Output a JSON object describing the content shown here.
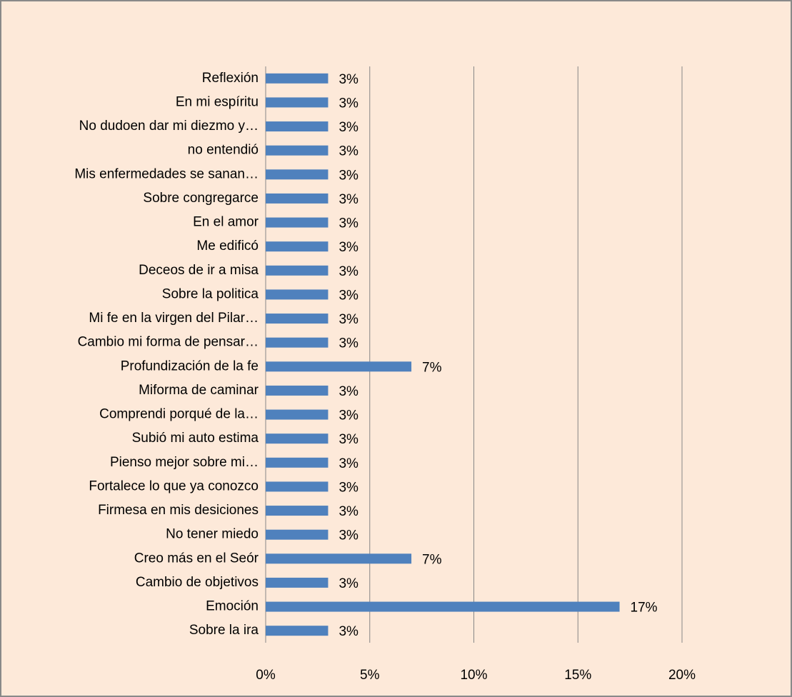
{
  "chart_data": {
    "type": "barh",
    "categories": [
      "Reflexión",
      "En mi espíritu",
      "No dudoen dar mi diezmo y…",
      "no entendió",
      "Mis enfermedades se sanan…",
      "Sobre congregarce",
      "En el amor",
      "Me edificó",
      "Deceos  de ir a misa",
      "Sobre la politica",
      "Mi fe en la virgen del Pilar…",
      "Cambio mi forma de pensar…",
      "Profundización de la fe",
      "Miforma de caminar",
      "Comprendi porqué de la…",
      "Subió mi auto estima",
      "Pienso mejor sobre mi…",
      "Fortalece lo que ya conozco",
      "Firmesa en mis desiciones",
      "No tener miedo",
      "Creo más en el Seór",
      "Cambio de objetivos",
      "Emoción",
      "Sobre la ira"
    ],
    "values": [
      3,
      3,
      3,
      3,
      3,
      3,
      3,
      3,
      3,
      3,
      3,
      3,
      7,
      3,
      3,
      3,
      3,
      3,
      3,
      3,
      7,
      3,
      17,
      3
    ],
    "value_labels": [
      "3%",
      "3%",
      "3%",
      "3%",
      "3%",
      "3%",
      "3%",
      "3%",
      "3%",
      "3%",
      "3%",
      "3%",
      "7%",
      "3%",
      "3%",
      "3%",
      "3%",
      "3%",
      "3%",
      "3%",
      "7%",
      "3%",
      "17%",
      "3%"
    ],
    "color": "#4f81bd",
    "xlim": [
      0,
      20
    ],
    "xticks": [
      {
        "value": 0,
        "label": "0%"
      },
      {
        "value": 5,
        "label": "5%"
      },
      {
        "value": 10,
        "label": "10%"
      },
      {
        "value": 15,
        "label": "15%"
      },
      {
        "value": 20,
        "label": "20%"
      }
    ],
    "grid": true
  }
}
